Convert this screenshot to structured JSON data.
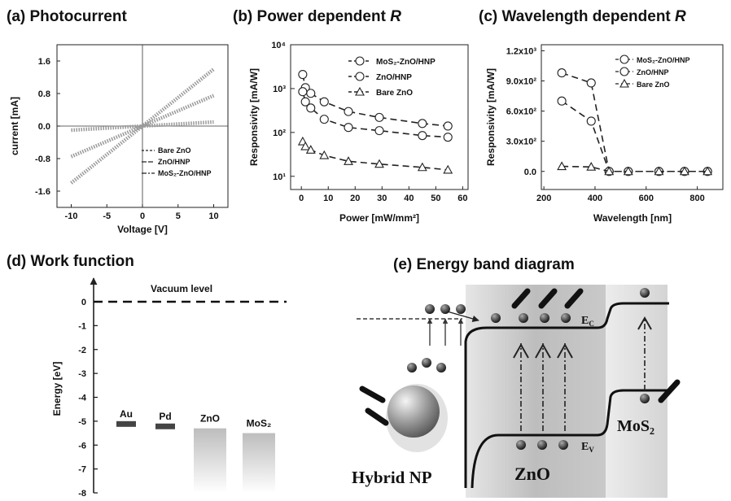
{
  "chart_data": [
    {
      "id": "a",
      "type": "line",
      "title": "(a) Photocurrent",
      "xlabel": "Voltage [V]",
      "ylabel": "current [mA]",
      "xlim": [
        -12,
        12
      ],
      "ylim": [
        -2.0,
        2.0
      ],
      "xticks": [
        -10,
        -5,
        0,
        5,
        10
      ],
      "xtick_labels": [
        "-10",
        "-5",
        "0",
        "5",
        "10"
      ],
      "yticks": [
        1.6,
        0.8,
        0.0,
        -0.8,
        -1.6
      ],
      "ytick_labels": [
        "1.6",
        "0.8",
        "0.0",
        "-0.8",
        "-1.6"
      ],
      "legend_position": "bottom-right",
      "series": [
        {
          "name": "Bare ZnO",
          "slope": 0.01
        },
        {
          "name": "ZnO/HNP",
          "slope": 0.075
        },
        {
          "name": "MoS₂-ZnO/HNP",
          "slope": 0.14
        }
      ],
      "x": [
        -10,
        10
      ]
    },
    {
      "id": "b",
      "type": "scatter",
      "title_prefix": "(b) Power dependent ",
      "title_var": "R",
      "xlabel": "Power [mW/mm²]",
      "ylabel": "Responsivity [mA/W]",
      "scale_y": "log",
      "xlim": [
        -4,
        62
      ],
      "ylim": [
        5,
        10000
      ],
      "xticks": [
        0,
        10,
        20,
        30,
        40,
        50,
        60
      ],
      "xtick_labels": [
        "0",
        "10",
        "20",
        "30",
        "40",
        "50",
        "60"
      ],
      "yticks": [
        10,
        100,
        1000,
        10000
      ],
      "ytick_labels": [
        "10¹",
        "10²",
        "10³",
        "10⁴"
      ],
      "legend_position": "top-right",
      "x": [
        0.5,
        1.5,
        3.5,
        8.5,
        17.5,
        29,
        45,
        54.5
      ],
      "series": [
        {
          "name": "MoS₂-ZnO/HNP",
          "marker": "circle",
          "values": [
            2100,
            1050,
            780,
            500,
            300,
            220,
            160,
            140
          ]
        },
        {
          "name": "ZnO/HNP",
          "marker": "circle",
          "values": [
            850,
            500,
            360,
            200,
            130,
            110,
            85,
            78
          ]
        },
        {
          "name": "Bare ZnO",
          "marker": "triangle",
          "values": [
            62,
            48,
            40,
            30,
            22,
            19,
            16,
            14
          ]
        }
      ]
    },
    {
      "id": "c",
      "type": "scatter",
      "title_prefix": "(c) Wavelength dependent ",
      "title_var": "R",
      "xlabel": "Wavelength [nm]",
      "ylabel": "Responsivity [mA/W]",
      "xlim": [
        190,
        900
      ],
      "ylim": [
        -180,
        1260
      ],
      "xticks": [
        200,
        400,
        600,
        800
      ],
      "xtick_labels": [
        "200",
        "400",
        "600",
        "800"
      ],
      "yticks": [
        0,
        300,
        600,
        900,
        1200
      ],
      "ytick_labels": [
        "0.0",
        "3.0x10²",
        "6.0x10²",
        "9.0x10²",
        "1.2x10³"
      ],
      "legend_position": "top-right",
      "x": [
        270,
        385,
        455,
        530,
        650,
        750,
        840
      ],
      "series": [
        {
          "name": "MoS₂-ZnO/HNP",
          "marker": "circle",
          "values": [
            980,
            880,
            0,
            0,
            0,
            0,
            0
          ]
        },
        {
          "name": "ZnO/HNP",
          "marker": "circle",
          "values": [
            700,
            500,
            0,
            0,
            0,
            0,
            0
          ]
        },
        {
          "name": "Bare ZnO",
          "marker": "triangle",
          "values": [
            50,
            45,
            0,
            0,
            0,
            0,
            0
          ]
        }
      ]
    },
    {
      "id": "d",
      "type": "bar",
      "title": "(d) Work function",
      "ylabel": "Energy [eV]",
      "ylim": [
        -8.4,
        0.9
      ],
      "yticks": [
        0,
        -1,
        -2,
        -3,
        -4,
        -5,
        -6,
        -7,
        -8
      ],
      "ytick_labels": [
        "0",
        "-1",
        "-2",
        "-3",
        "-4",
        "-5",
        "-6",
        "-7",
        "-8"
      ],
      "vacuum_label": "Vacuum level",
      "vacuum_value": 0,
      "categories": [
        "Au",
        "Pd",
        "ZnO",
        "MoS₂"
      ],
      "values": [
        -5.1,
        -5.2,
        -5.3,
        -5.5
      ]
    }
  ],
  "diagram": {
    "title": "(e) Energy band diagram",
    "np_label": "Hybrid NP",
    "zno_label": "ZnO",
    "mos2_label": "MoS₂",
    "ec_label": "E",
    "ec_sub": "C",
    "ev_label": "E",
    "ev_sub": "V"
  }
}
